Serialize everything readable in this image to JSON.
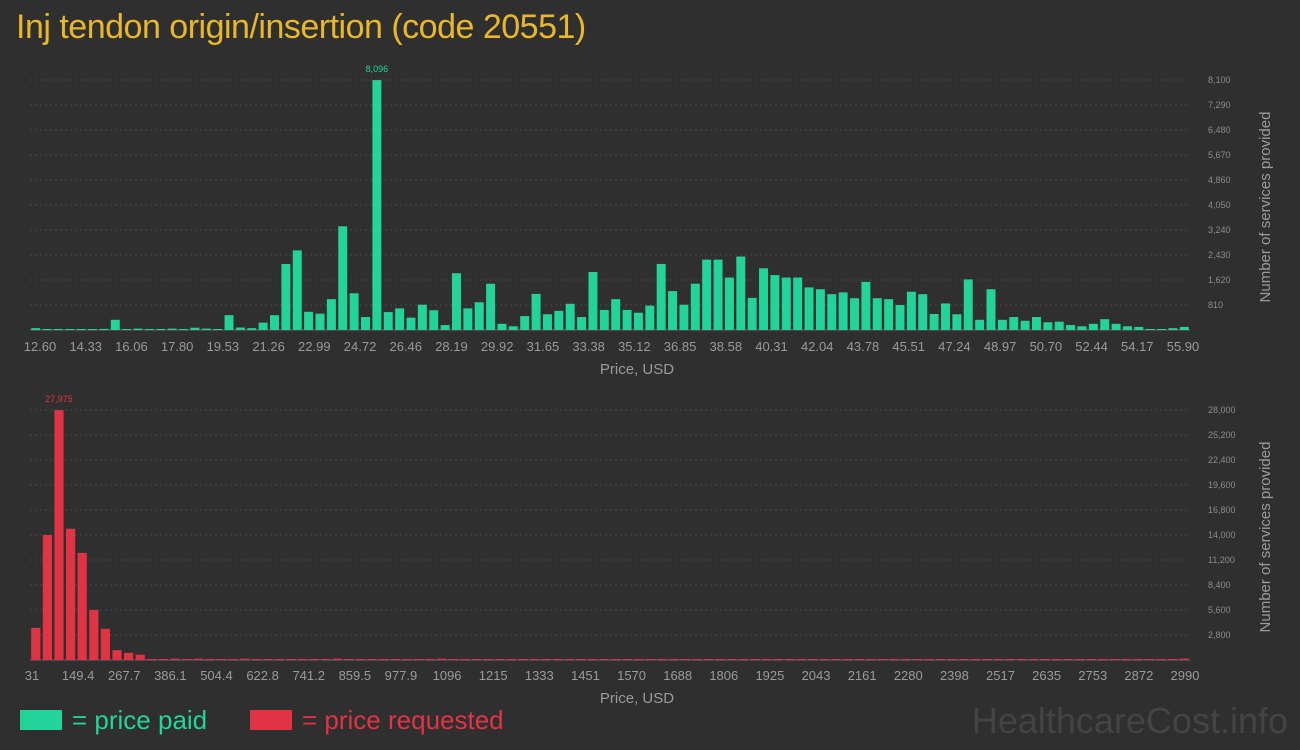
{
  "title": "Inj tendon origin/insertion (code 20551)",
  "watermark": "HealthcareCost.info",
  "legend": {
    "paid_label": "= price paid",
    "requested_label": "= price requested",
    "paid_color": "#22d49a",
    "requested_color": "#e03344"
  },
  "chart_data": [
    {
      "type": "bar",
      "series_name": "price paid",
      "color": "#22d49a",
      "xlabel": "Price, USD",
      "ylabel": "Number of services provided",
      "x_tick_labels": [
        "12.60",
        "14.33",
        "16.06",
        "17.80",
        "19.53",
        "21.26",
        "22.99",
        "24.72",
        "26.46",
        "28.19",
        "29.92",
        "31.65",
        "33.38",
        "35.12",
        "36.85",
        "38.58",
        "40.31",
        "42.04",
        "43.78",
        "45.51",
        "47.24",
        "48.97",
        "50.70",
        "52.44",
        "54.17",
        "55.90"
      ],
      "y_tick_labels": [
        "810",
        "1,620",
        "2,430",
        "3,240",
        "4,050",
        "4,860",
        "5,670",
        "6,480",
        "7,290",
        "8,100"
      ],
      "ylim": [
        0,
        8100
      ],
      "peak_label": "8,096",
      "values": [
        60,
        15,
        15,
        15,
        15,
        15,
        35,
        330,
        15,
        45,
        15,
        15,
        45,
        15,
        75,
        45,
        15,
        480,
        80,
        60,
        240,
        480,
        2140,
        2580,
        590,
        530,
        1000,
        3360,
        1190,
        420,
        8096,
        580,
        700,
        400,
        820,
        640,
        160,
        1840,
        700,
        900,
        1500,
        200,
        120,
        450,
        1170,
        510,
        620,
        850,
        420,
        1880,
        650,
        1000,
        650,
        560,
        790,
        2140,
        1260,
        820,
        1500,
        2280,
        2280,
        1700,
        2380,
        1040,
        2000,
        1780,
        1700,
        1700,
        1380,
        1320,
        1160,
        1220,
        1030,
        1560,
        1030,
        1000,
        810,
        1240,
        1160,
        520,
        860,
        510,
        1640,
        330,
        1320,
        330,
        420,
        300,
        420,
        250,
        270,
        160,
        120,
        200,
        350,
        200,
        120,
        100,
        15,
        15,
        60,
        100
      ]
    },
    {
      "type": "bar",
      "series_name": "price requested",
      "color": "#e03344",
      "xlabel": "Price, USD",
      "ylabel": "Number of services provided",
      "x_tick_labels": [
        "31",
        "149.4",
        "267.7",
        "386.1",
        "504.4",
        "622.8",
        "741.2",
        "859.5",
        "977.9",
        "1096",
        "1215",
        "1333",
        "1451",
        "1570",
        "1688",
        "1806",
        "1925",
        "2043",
        "2161",
        "2280",
        "2398",
        "2517",
        "2635",
        "2753",
        "2872",
        "2990"
      ],
      "y_tick_labels": [
        "2,800",
        "5,600",
        "8,400",
        "11,200",
        "14,000",
        "16,800",
        "19,600",
        "22,400",
        "25,200",
        "28,000"
      ],
      "ylim": [
        0,
        28000
      ],
      "peak_label": "27,975",
      "values": [
        3600,
        14000,
        27975,
        14700,
        12000,
        5600,
        3500,
        1100,
        800,
        600,
        80,
        80,
        150,
        80,
        150,
        80,
        80,
        80,
        150,
        80,
        80,
        80,
        80,
        80,
        80,
        80,
        150,
        80,
        80,
        80,
        80,
        80,
        80,
        80,
        80,
        150,
        80,
        80,
        80,
        80,
        80,
        80,
        80,
        80,
        80,
        80,
        80,
        80,
        80,
        80,
        80,
        80,
        80,
        80,
        80,
        80,
        80,
        80,
        80,
        80,
        80,
        80,
        80,
        80,
        80,
        80,
        80,
        80,
        80,
        80,
        80,
        80,
        80,
        80,
        80,
        80,
        80,
        80,
        80,
        80,
        80,
        80,
        80,
        80,
        80,
        80,
        80,
        80,
        80,
        80,
        80,
        80,
        80,
        80,
        80,
        80,
        80,
        80,
        80,
        150
      ]
    }
  ]
}
